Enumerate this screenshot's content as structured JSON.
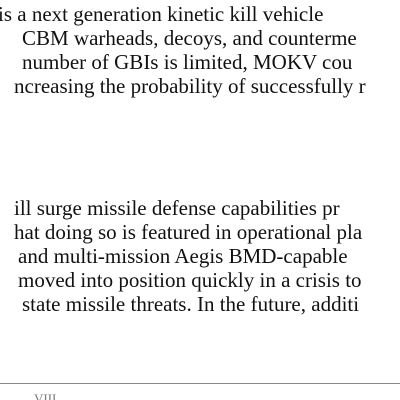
{
  "paragraphs": [
    [
      "is a next generation kinetic kill vehicle",
      "CBM warheads, decoys, and counterme",
      "number of GBIs is limited, MOKV cou",
      "ncreasing the probability of successfully r"
    ],
    [
      "ill surge missile defense capabilities pr",
      "hat doing so is featured in operational pla",
      "and multi-mission Aegis BMD-capable",
      "moved into position quickly in a crisis to",
      "state missile threats.  In the future, additi"
    ]
  ],
  "footer": {
    "page_number": "VIII"
  }
}
